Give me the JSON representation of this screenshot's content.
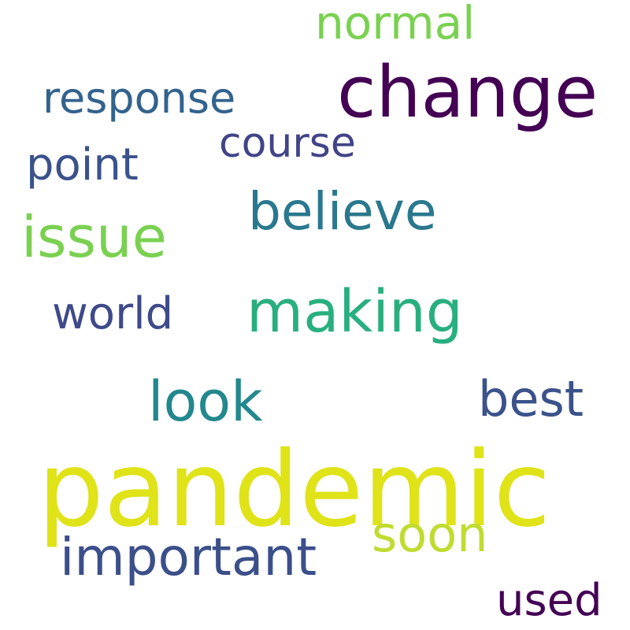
{
  "words": [
    {
      "id": "pandemic",
      "text": "pandemic",
      "color": "#dfe318"
    },
    {
      "id": "change",
      "text": "change",
      "color": "#440154"
    },
    {
      "id": "making",
      "text": "making",
      "color": "#29af7f"
    },
    {
      "id": "believe",
      "text": "believe",
      "color": "#2a788e"
    },
    {
      "id": "issue",
      "text": "issue",
      "color": "#7ad151"
    },
    {
      "id": "important",
      "text": "important",
      "color": "#3b4f8a"
    },
    {
      "id": "look",
      "text": "look",
      "color": "#23888e"
    },
    {
      "id": "soon",
      "text": "soon",
      "color": "#bfdc2f"
    },
    {
      "id": "best",
      "text": "best",
      "color": "#3b528b"
    },
    {
      "id": "world",
      "text": "world",
      "color": "#3e4a89"
    },
    {
      "id": "point",
      "text": "point",
      "color": "#3b528b"
    },
    {
      "id": "course",
      "text": "course",
      "color": "#414487"
    },
    {
      "id": "response",
      "text": "response",
      "color": "#33638d"
    },
    {
      "id": "normal",
      "text": "normal",
      "color": "#7ad151"
    },
    {
      "id": "used",
      "text": "used",
      "color": "#440154"
    }
  ]
}
